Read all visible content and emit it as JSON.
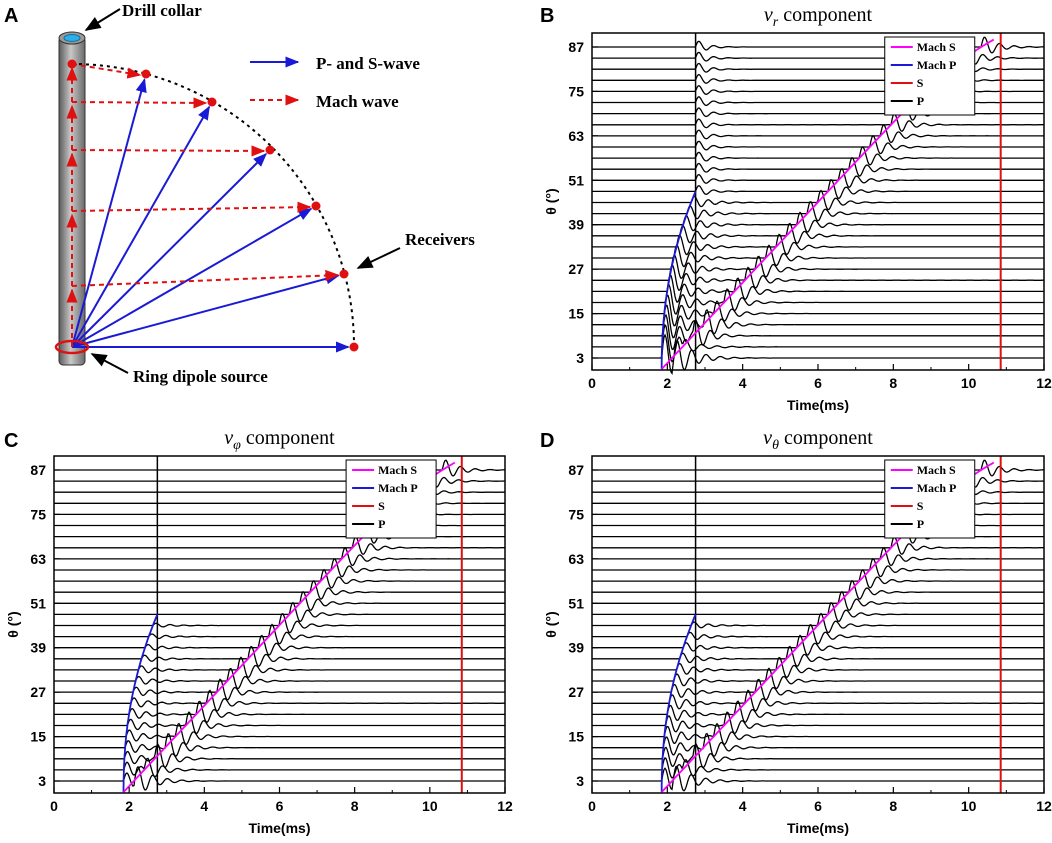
{
  "diagram": {
    "letter": "A",
    "labels": {
      "drill_collar": "Drill collar",
      "ps_wave": "P- and S-wave",
      "mach_wave": "Mach wave",
      "receivers": "Receivers",
      "source": "Ring dipole source"
    },
    "colors": {
      "ps": "#1a1ad6",
      "mach": "#e01010",
      "receiver": "#e01010",
      "arc": "#000000"
    }
  },
  "chart_data": [
    {
      "type": "line",
      "letter": "B",
      "title": "v",
      "title_sub": "r",
      "title_rest": " component",
      "xlabel": "Time(ms)",
      "ylabel": "θ (°)",
      "xlim": [
        0,
        12
      ],
      "xticks": [
        "0",
        "2",
        "4",
        "6",
        "8",
        "10",
        "12"
      ],
      "yticks": [
        "3",
        "15",
        "27",
        "39",
        "51",
        "63",
        "75",
        "87"
      ],
      "theta_traces_deg": [
        3,
        87
      ],
      "trace_count": 29,
      "p_arrival_ms": 2.75,
      "s_arrival_ms": 10.85,
      "mach_p_start_ms": 1.85,
      "mach_s_start_ms": 1.85,
      "legend": [
        "Mach S",
        "Mach P",
        "S",
        "P"
      ],
      "legend_colors": [
        "#ff00ff",
        "#1a1ad6",
        "#e01010",
        "#000000"
      ],
      "p_energy": "strong"
    },
    {
      "type": "line",
      "letter": "C",
      "title": "v",
      "title_sub": "φ",
      "title_rest": " component",
      "xlabel": "Time(ms)",
      "ylabel": "θ (°)",
      "xlim": [
        0,
        12
      ],
      "xticks": [
        "0",
        "2",
        "4",
        "6",
        "8",
        "10",
        "12"
      ],
      "yticks": [
        "3",
        "15",
        "27",
        "39",
        "51",
        "63",
        "75",
        "87"
      ],
      "theta_traces_deg": [
        3,
        87
      ],
      "trace_count": 29,
      "p_arrival_ms": 2.75,
      "s_arrival_ms": 10.85,
      "mach_p_start_ms": 1.85,
      "mach_s_start_ms": 1.85,
      "legend": [
        "Mach S",
        "Mach P",
        "S",
        "P"
      ],
      "legend_colors": [
        "#ff00ff",
        "#1a1ad6",
        "#e01010",
        "#000000"
      ],
      "p_energy": "weak"
    },
    {
      "type": "line",
      "letter": "D",
      "title": "v",
      "title_sub": "θ",
      "title_rest": "  component",
      "xlabel": "Time(ms)",
      "ylabel": "θ (°)",
      "xlim": [
        0,
        12
      ],
      "xticks": [
        "0",
        "2",
        "4",
        "6",
        "8",
        "10",
        "12"
      ],
      "yticks": [
        "3",
        "15",
        "27",
        "39",
        "51",
        "63",
        "75",
        "87"
      ],
      "theta_traces_deg": [
        3,
        87
      ],
      "trace_count": 29,
      "p_arrival_ms": 2.75,
      "s_arrival_ms": 10.85,
      "mach_p_start_ms": 1.85,
      "mach_s_start_ms": 1.85,
      "legend": [
        "Mach S",
        "Mach P",
        "S",
        "P"
      ],
      "legend_colors": [
        "#ff00ff",
        "#1a1ad6",
        "#e01010",
        "#000000"
      ],
      "p_energy": "medium"
    }
  ]
}
